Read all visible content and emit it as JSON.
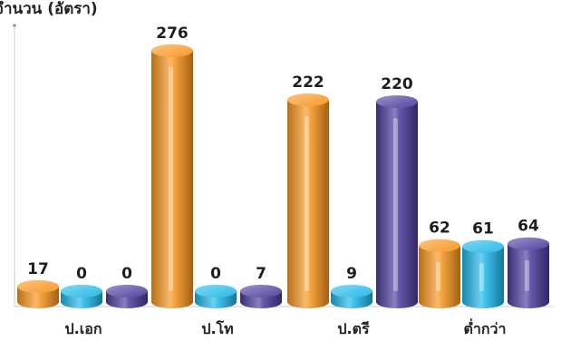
{
  "chart_data": {
    "type": "bar",
    "title": "",
    "ylabel": "จำนวน (อัตรา)",
    "xlabel": "",
    "categories": [
      "ป.เอก",
      "ป.โท",
      "ป.ตรี",
      "ต่ำกว่า"
    ],
    "series": [
      {
        "color": "#f7941d",
        "values": [
          17,
          276,
          222,
          62
        ]
      },
      {
        "color": "#1fb6e8",
        "values": [
          0,
          0,
          9,
          61
        ]
      },
      {
        "color": "#4b3a9c",
        "values": [
          0,
          7,
          220,
          64
        ]
      }
    ],
    "ylim": [
      0,
      290
    ],
    "grid": false,
    "legend": "none"
  }
}
